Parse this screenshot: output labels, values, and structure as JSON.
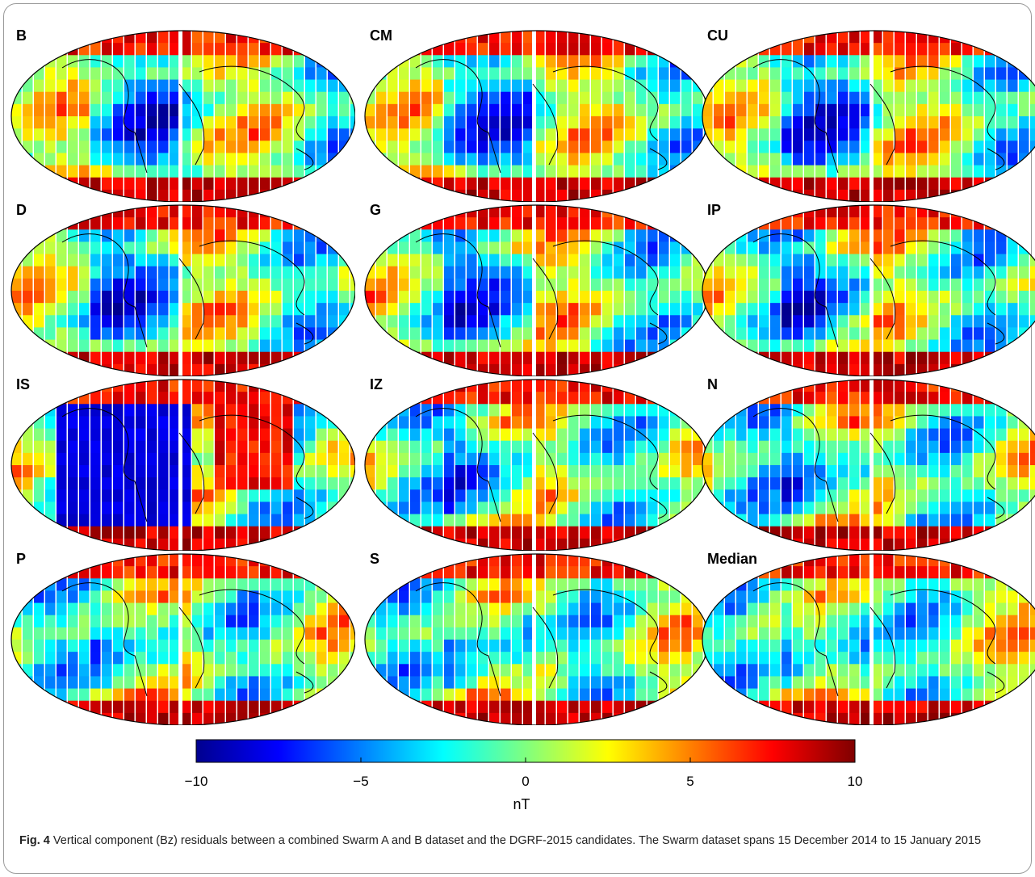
{
  "panels": [
    {
      "label": "B"
    },
    {
      "label": "CM"
    },
    {
      "label": "CU"
    },
    {
      "label": "D"
    },
    {
      "label": "G"
    },
    {
      "label": "IP"
    },
    {
      "label": "IS"
    },
    {
      "label": "IZ"
    },
    {
      "label": "N"
    },
    {
      "label": "P"
    },
    {
      "label": "S"
    },
    {
      "label": "Median"
    }
  ],
  "colorbar": {
    "unit": "nT",
    "ticks": [
      "−10",
      "−5",
      "0",
      "5",
      "10"
    ],
    "range": [
      -10,
      10
    ],
    "colormap": "jet"
  },
  "caption": {
    "fig": "Fig. 4",
    "text": "Vertical component (Bz) residuals between a combined Swarm A and B dataset and the DGRF-2015 candidates. The Swarm dataset spans 15 December 2014 to 15 January 2015"
  }
}
